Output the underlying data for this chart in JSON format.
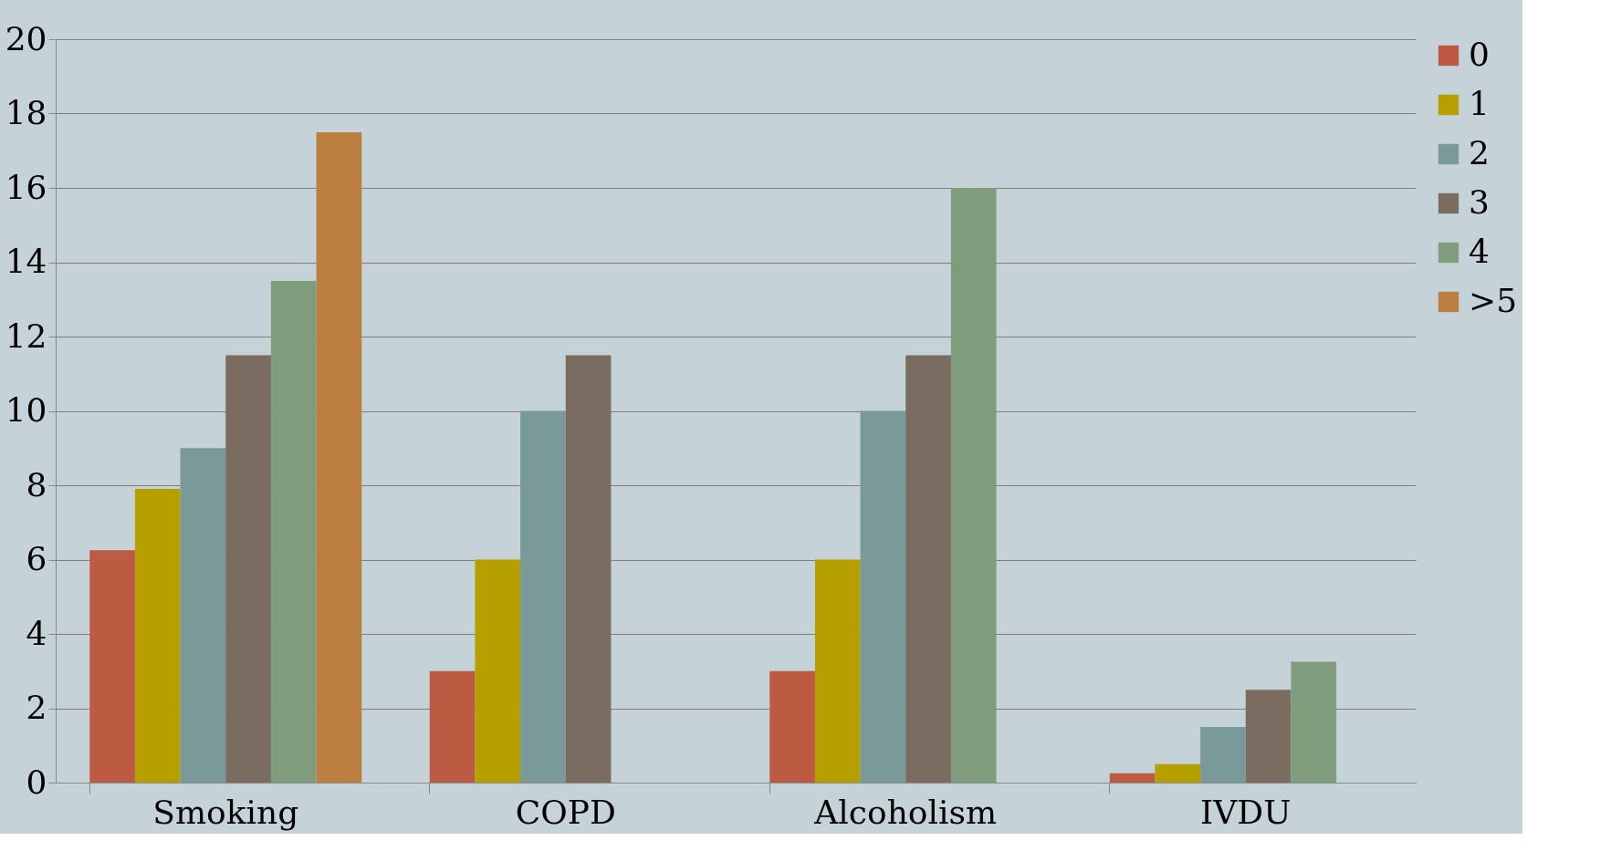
{
  "chart_data": {
    "type": "bar",
    "categories": [
      "Smoking",
      "COPD",
      "Alcoholism",
      "IVDU"
    ],
    "series": [
      {
        "name": "0",
        "color": "#bc5a42",
        "values": [
          6.25,
          3,
          3,
          0.25
        ]
      },
      {
        "name": "1",
        "color": "#b5a000",
        "values": [
          7.9,
          6,
          6,
          0.5
        ]
      },
      {
        "name": "2",
        "color": "#7a9a9a",
        "values": [
          9,
          10,
          10,
          1.5
        ]
      },
      {
        "name": "3",
        "color": "#7a6c60",
        "values": [
          11.5,
          11.5,
          11.5,
          2.5
        ]
      },
      {
        "name": "4",
        "color": "#7f9c7c",
        "values": [
          13.5,
          null,
          16,
          3.25
        ]
      },
      {
        "name": ">5",
        "color": "#bb7f40",
        "values": [
          17.5,
          null,
          null,
          null
        ]
      }
    ],
    "ylim": [
      0,
      20
    ],
    "yticks": [
      0,
      2,
      4,
      6,
      8,
      10,
      12,
      14,
      16,
      18,
      20
    ],
    "grid": "y",
    "legend": "right"
  }
}
